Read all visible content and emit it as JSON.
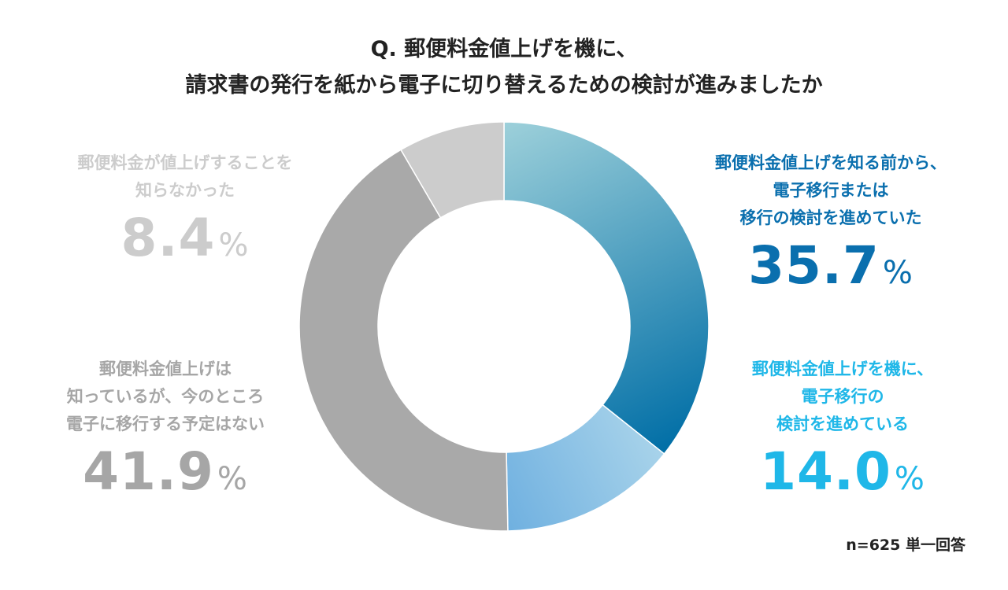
{
  "title": {
    "line1": "Q. 郵便料金値上げを機に、",
    "line2": "請求書の発行を紙から電子に切り替えるための検討が進みましたか"
  },
  "chart_data": {
    "type": "pie",
    "variant": "donut",
    "title": "Q. 郵便料金値上げを機に、請求書の発行を紙から電子に切り替えるための検討が進みましたか",
    "unit": "%",
    "slices": [
      {
        "label_lines": [
          "郵便料金値上げを知る前から、",
          "電子移行または",
          "移行の検討を進めていた"
        ],
        "value": 35.7,
        "value_text": "35.7",
        "color": "#0a6fae",
        "gradient": [
          "#9dd0da",
          "#006ea6"
        ]
      },
      {
        "label_lines": [
          "郵便料金値上げを機に、",
          "電子移行の",
          "検討を進めている"
        ],
        "value": 14.0,
        "value_text": "14.0",
        "color": "#1fb7e8",
        "gradient": [
          "#a8d3ea",
          "#6fb0e0"
        ]
      },
      {
        "label_lines": [
          "郵便料金値上げは",
          "知っているが、今のところ",
          "電子に移行する予定はない"
        ],
        "value": 41.9,
        "value_text": "41.9",
        "color": "#a6a6a6",
        "gradient": [
          "#a9a9a9",
          "#a9a9a9"
        ]
      },
      {
        "label_lines": [
          "郵便料金が値上げすることを",
          "知らなかった"
        ],
        "value": 8.4,
        "value_text": "8.4",
        "color": "#cccccc",
        "gradient": [
          "#cccccc",
          "#cccccc"
        ]
      }
    ],
    "percent_symbol": "%"
  },
  "footnote": "n=625 単一回答"
}
